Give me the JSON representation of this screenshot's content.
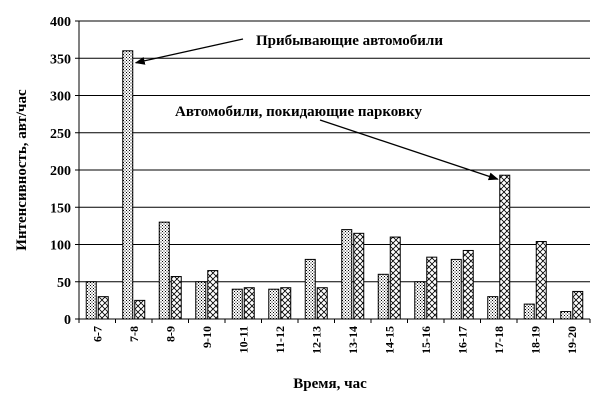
{
  "chart_data": {
    "type": "bar",
    "categories": [
      "6-7",
      "7-8",
      "8-9",
      "9-10",
      "10-11",
      "11-12",
      "12-13",
      "13-14",
      "14-15",
      "15-16",
      "16-17",
      "17-18",
      "18-19",
      "19-20"
    ],
    "series": [
      {
        "name": "Прибывающие автомобили",
        "values": [
          50,
          360,
          130,
          50,
          40,
          40,
          80,
          120,
          60,
          50,
          80,
          30,
          20,
          10
        ],
        "fill_pattern": "dots"
      },
      {
        "name": "Автомобили, покидающие парковку",
        "values": [
          30,
          25,
          57,
          65,
          42,
          42,
          42,
          115,
          110,
          83,
          92,
          193,
          104,
          37
        ],
        "fill_pattern": "crosshatch"
      }
    ],
    "title": "",
    "xlabel": "Время, час",
    "ylabel": "Интенсивность, авт/час",
    "ylim": [
      0,
      400
    ],
    "yticks": [
      0,
      50,
      100,
      150,
      200,
      250,
      300,
      350,
      400
    ],
    "grid": true,
    "annotations": [
      {
        "text": "Прибывающие автомобили",
        "target_series": 0,
        "target_category": "7-8"
      },
      {
        "text": "Автомобили, покидающие парковку",
        "target_series": 1,
        "target_category": "17-18"
      }
    ],
    "colors": {
      "axis": "#000000",
      "grid": "#000000",
      "bar_stroke": "#000000",
      "bar_fill": "#ffffff"
    }
  }
}
